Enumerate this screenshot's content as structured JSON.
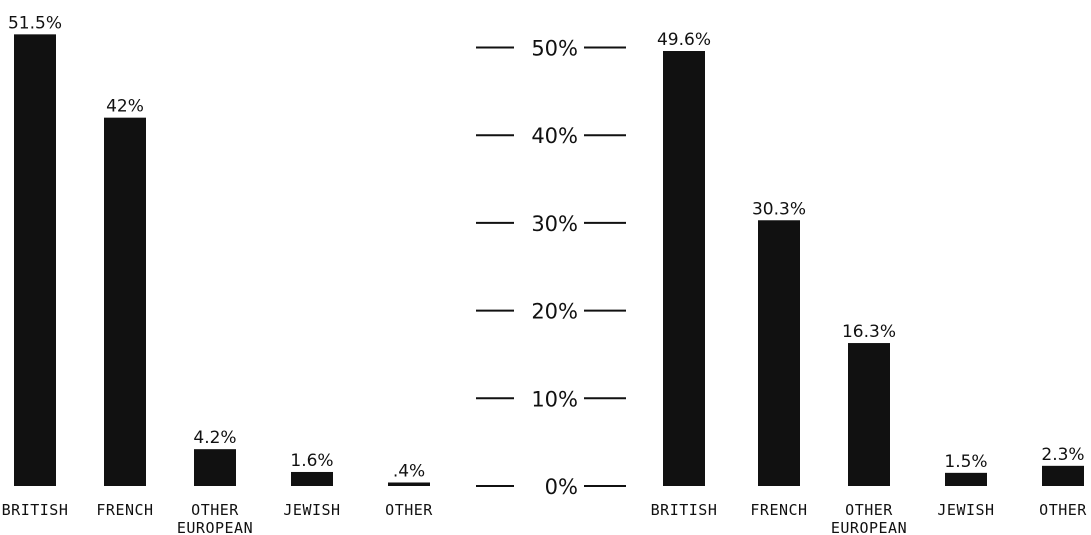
{
  "chart_data": [
    {
      "type": "bar",
      "categories": [
        "BRITISH",
        "FRENCH",
        "OTHER EUROPEAN",
        "JEWISH",
        "OTHER"
      ],
      "values": [
        51.5,
        42,
        4.2,
        1.6,
        0.4
      ],
      "value_labels": [
        "51.5%",
        "42%",
        "4.2%",
        "1.6%",
        ".4%"
      ],
      "ylim": [
        0,
        50
      ]
    },
    {
      "type": "bar",
      "categories": [
        "BRITISH",
        "FRENCH",
        "OTHER EUROPEAN",
        "JEWISH",
        "OTHER"
      ],
      "values": [
        49.6,
        30.3,
        16.3,
        1.5,
        2.3
      ],
      "value_labels": [
        "49.6%",
        "30.3%",
        "16.3%",
        "1.5%",
        "2.3%"
      ],
      "ylim": [
        0,
        50
      ]
    }
  ],
  "axis": {
    "ticks": [
      0,
      10,
      20,
      30,
      40,
      50
    ],
    "tick_labels": [
      "0%",
      "10%",
      "20%",
      "30%",
      "40%",
      "50%"
    ]
  },
  "colors": {
    "bar": "#111111"
  }
}
